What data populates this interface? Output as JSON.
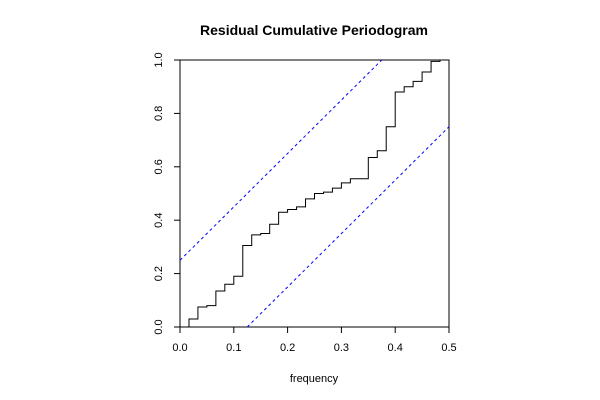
{
  "chart_data": {
    "type": "line",
    "title": "Residual Cumulative Periodogram",
    "xlabel": "frequency",
    "ylabel": "",
    "xlim": [
      0,
      0.5
    ],
    "ylim": [
      0,
      1
    ],
    "grid": false,
    "xticks": [
      0.0,
      0.1,
      0.2,
      0.3,
      0.4,
      0.5
    ],
    "xtick_labels": [
      "0.0",
      "0.1",
      "0.2",
      "0.3",
      "0.4",
      "0.5"
    ],
    "yticks": [
      0.0,
      0.2,
      0.4,
      0.6,
      0.8,
      1.0
    ],
    "ytick_labels": [
      "0.0",
      "0.2",
      "0.4",
      "0.6",
      "0.8",
      "1.0"
    ],
    "series": [
      {
        "style": "step",
        "color": "#000000",
        "x": [
          0.0,
          0.0167,
          0.0333,
          0.05,
          0.0667,
          0.0833,
          0.1,
          0.1167,
          0.1333,
          0.15,
          0.1667,
          0.1833,
          0.2,
          0.2167,
          0.2333,
          0.25,
          0.2667,
          0.2833,
          0.3,
          0.3167,
          0.3333,
          0.35,
          0.3667,
          0.3833,
          0.4,
          0.4167,
          0.4333,
          0.45,
          0.4667,
          0.4833,
          0.5
        ],
        "y": [
          0.0,
          0.03,
          0.075,
          0.08,
          0.135,
          0.16,
          0.19,
          0.305,
          0.345,
          0.35,
          0.385,
          0.43,
          0.44,
          0.45,
          0.48,
          0.5,
          0.505,
          0.52,
          0.54,
          0.555,
          0.555,
          0.635,
          0.66,
          0.75,
          0.88,
          0.9,
          0.92,
          0.955,
          0.995,
          1.0,
          1.0
        ]
      },
      {
        "style": "dashed",
        "color": "#0000ff",
        "x": [
          0.0,
          0.375
        ],
        "y": [
          0.25,
          1.0
        ]
      },
      {
        "style": "dashed",
        "color": "#0000ff",
        "x": [
          0.125,
          0.5
        ],
        "y": [
          0.0,
          0.75
        ]
      }
    ]
  }
}
